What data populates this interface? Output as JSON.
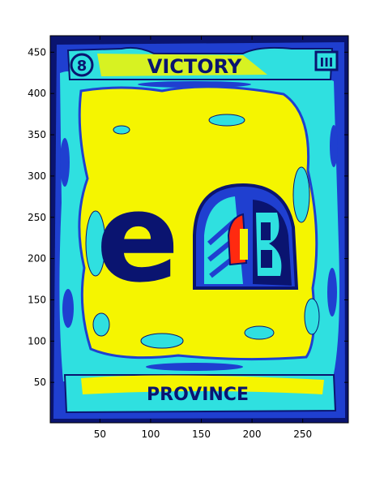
{
  "figure": {
    "background": "#ffffff",
    "colormap": [
      "#0a1470",
      "#1f3fd0",
      "#2fe0e0",
      "#f5f500",
      "#ff2a10"
    ],
    "axes": {
      "x_ticks": [
        "50",
        "100",
        "150",
        "200",
        "250"
      ],
      "y_ticks": [
        "450",
        "400",
        "350",
        "300",
        "250",
        "200",
        "150",
        "100",
        "50"
      ],
      "x_range": [
        1,
        295
      ],
      "y_range": [
        1,
        470
      ]
    },
    "image": {
      "title_text": "VICTORY",
      "subtitle_text": "PROVINCE",
      "corner_left_text": "8",
      "corner_right_text": "III",
      "big_letter": "e"
    }
  }
}
